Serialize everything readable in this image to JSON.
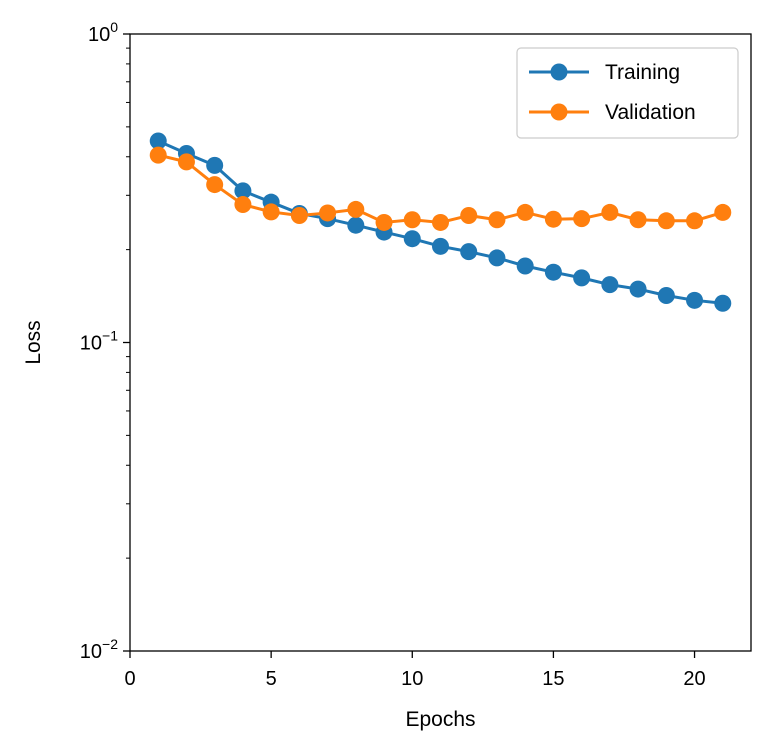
{
  "chart_data": {
    "type": "line",
    "title": "",
    "xlabel": "Epochs",
    "ylabel": "Loss",
    "yscale": "log",
    "xlim": [
      0,
      22
    ],
    "ylim": [
      0.01,
      1
    ],
    "x_ticks": [
      {
        "value": 0,
        "label": "0"
      },
      {
        "value": 5,
        "label": "5"
      },
      {
        "value": 10,
        "label": "10"
      },
      {
        "value": 15,
        "label": "15"
      },
      {
        "value": 20,
        "label": "20"
      }
    ],
    "y_ticks": [
      {
        "value": 1,
        "base": "10",
        "exp": "0"
      },
      {
        "value": 0.1,
        "base": "10",
        "exp": "−1"
      },
      {
        "value": 0.01,
        "base": "10",
        "exp": "−2"
      }
    ],
    "grid": false,
    "legend_position": "top-right",
    "x": [
      1,
      2,
      3,
      4,
      5,
      6,
      7,
      8,
      9,
      10,
      11,
      12,
      13,
      14,
      15,
      16,
      17,
      18,
      19,
      20,
      21
    ],
    "series": [
      {
        "name": "Training",
        "color": "#1f77b4",
        "values": [
          0.45,
          0.41,
          0.375,
          0.31,
          0.285,
          0.262,
          0.252,
          0.24,
          0.228,
          0.217,
          0.205,
          0.197,
          0.188,
          0.177,
          0.169,
          0.162,
          0.154,
          0.149,
          0.142,
          0.137,
          0.134
        ]
      },
      {
        "name": "Validation",
        "color": "#ff7f0e",
        "values": [
          0.405,
          0.385,
          0.325,
          0.28,
          0.265,
          0.258,
          0.263,
          0.27,
          0.245,
          0.25,
          0.245,
          0.258,
          0.25,
          0.264,
          0.251,
          0.252,
          0.264,
          0.25,
          0.248,
          0.248,
          0.264
        ]
      }
    ]
  }
}
